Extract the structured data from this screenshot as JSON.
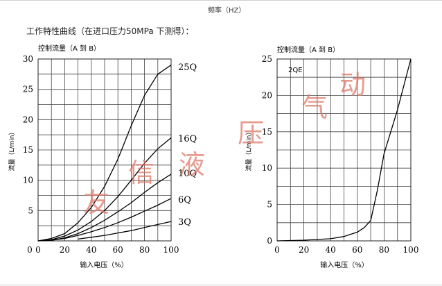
{
  "header": {
    "note": "频率（HZ）"
  },
  "section_title": "工作特性曲线（在进口压力50MPa 下测得）：",
  "watermark": [
    "友",
    "信",
    "液",
    "压",
    "气",
    "动"
  ],
  "colors": {
    "line": "#000000",
    "grid": "#444444",
    "watermark": "#e07a6a"
  },
  "chart_data": [
    {
      "type": "line",
      "title": "控制流量（A 到 B）",
      "xlabel": "输入电压（%）",
      "ylabel": "流量（L/min）",
      "xlim": [
        0,
        100
      ],
      "ylim": [
        0,
        30
      ],
      "xticks": [
        0,
        20,
        40,
        60,
        80,
        100
      ],
      "yticks": [
        0,
        5,
        10,
        15,
        20,
        25,
        30
      ],
      "grid": true,
      "series": [
        {
          "name": "25Q",
          "x": [
            0,
            10,
            20,
            30,
            40,
            50,
            60,
            70,
            80,
            90,
            100
          ],
          "y": [
            0,
            0.4,
            1.2,
            3,
            5.5,
            9,
            13.5,
            19,
            24,
            27.5,
            29
          ]
        },
        {
          "name": "16Q",
          "x": [
            0,
            10,
            20,
            30,
            40,
            50,
            60,
            70,
            80,
            90,
            100
          ],
          "y": [
            0,
            0.2,
            0.8,
            1.8,
            3.2,
            5,
            7.3,
            10,
            12.8,
            15.2,
            17
          ]
        },
        {
          "name": "10Q",
          "x": [
            0,
            10,
            20,
            30,
            40,
            50,
            60,
            70,
            80,
            90,
            100
          ],
          "y": [
            0,
            0.1,
            0.5,
            1.2,
            2.2,
            3.4,
            4.8,
            6.3,
            8,
            9.6,
            11
          ]
        },
        {
          "name": "6Q",
          "x": [
            10,
            20,
            30,
            40,
            50,
            60,
            70,
            80,
            90,
            100
          ],
          "y": [
            0.1,
            0.4,
            0.9,
            1.5,
            2.2,
            3,
            3.9,
            4.9,
            5.9,
            7
          ]
        },
        {
          "name": "3Q",
          "x": [
            30,
            40,
            50,
            60,
            70,
            80,
            90,
            100
          ],
          "y": [
            0.3,
            0.6,
            0.9,
            1.3,
            1.7,
            2.2,
            2.7,
            3.2
          ]
        }
      ]
    },
    {
      "type": "line",
      "title": "控制流量（A 到 B）",
      "xlabel": "输入电压（%）",
      "ylabel": "流量（L/min）",
      "xlim": [
        0,
        100
      ],
      "ylim": [
        0,
        25
      ],
      "xticks": [
        0,
        20,
        40,
        60,
        80,
        100
      ],
      "yticks": [
        0,
        5,
        10,
        15,
        20,
        25
      ],
      "grid": true,
      "annotation": "2QE",
      "series": [
        {
          "name": "2QE",
          "x": [
            0,
            20,
            40,
            50,
            60,
            65,
            70,
            75,
            80,
            90,
            100
          ],
          "y": [
            0,
            0.1,
            0.3,
            0.6,
            1.2,
            1.8,
            2.8,
            7,
            12,
            18,
            25
          ]
        }
      ]
    }
  ]
}
